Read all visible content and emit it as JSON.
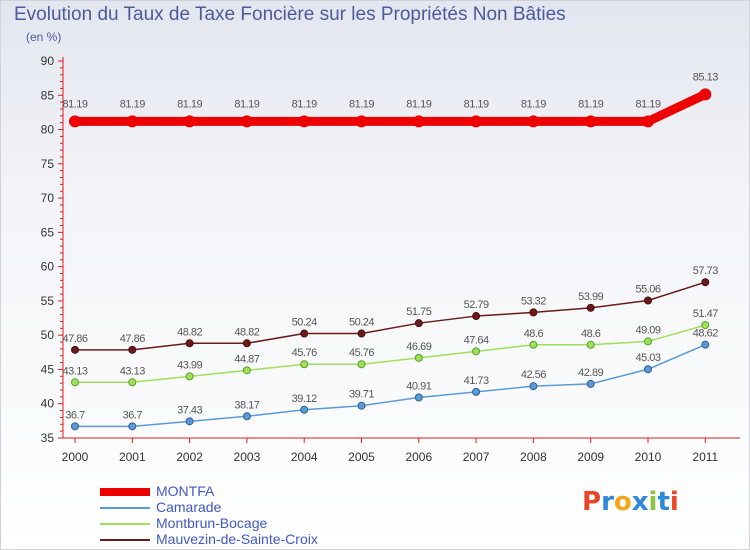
{
  "header": {
    "title": "Evolution du Taux de Taxe Foncière sur les Propriétés Non Bâties",
    "subtitle": "(en %)"
  },
  "logo": {
    "letters": [
      "P",
      "r",
      "o",
      "x",
      "i",
      "t",
      "i"
    ],
    "colors": [
      "#e8452a",
      "#2e8ad8",
      "#f4a61a",
      "#2e8ad8",
      "#8bc53f",
      "#2e8ad8",
      "#e8452a"
    ]
  },
  "chart_data": {
    "type": "line",
    "title": "Evolution du Taux de Taxe Foncière sur les Propriétés Non Bâties",
    "ylabel": "(en %)",
    "xlabel": "",
    "ylim": [
      35,
      90
    ],
    "yticks": [
      35,
      40,
      45,
      50,
      55,
      60,
      65,
      70,
      75,
      80,
      85,
      90
    ],
    "grid": false,
    "legend_position": "bottom-left",
    "categories": [
      "2000",
      "2001",
      "2002",
      "2003",
      "2004",
      "2005",
      "2006",
      "2007",
      "2008",
      "2009",
      "2010",
      "2011"
    ],
    "series": [
      {
        "name": "MONTFA",
        "color": "#ee0000",
        "values": [
          81.19,
          81.19,
          81.19,
          81.19,
          81.19,
          81.19,
          81.19,
          81.19,
          81.19,
          81.19,
          81.19,
          85.13
        ],
        "labels": [
          "81.19",
          "81.19",
          "81.19",
          "81.19",
          "81.19",
          "81.19",
          "81.19",
          "81.19",
          "81.19",
          "81.19",
          "81.19",
          "85.13"
        ]
      },
      {
        "name": "Camarade",
        "color": "#5b9bd5",
        "values": [
          36.7,
          36.7,
          37.43,
          38.17,
          39.12,
          39.71,
          40.91,
          41.73,
          42.56,
          42.89,
          45.03,
          48.62
        ],
        "labels": [
          "36.7",
          "36.7",
          "37.43",
          "38.17",
          "39.12",
          "39.71",
          "40.91",
          "41.73",
          "42.56",
          "42.89",
          "45.03",
          "48.62"
        ]
      },
      {
        "name": "Montbrun-Bocage",
        "color": "#9ee05a",
        "values": [
          43.13,
          43.13,
          43.99,
          44.87,
          45.76,
          45.76,
          46.69,
          47.64,
          48.6,
          48.6,
          49.09,
          51.47
        ],
        "labels": [
          "43.13",
          "43.13",
          "43.99",
          "44.87",
          "45.76",
          "45.76",
          "46.69",
          "47.64",
          "48.6",
          "48.6",
          "49.09",
          "51.47"
        ]
      },
      {
        "name": "Mauvezin-de-Sainte-Croix",
        "color": "#6b1a1a",
        "values": [
          47.86,
          47.86,
          48.82,
          48.82,
          50.24,
          50.24,
          51.75,
          52.79,
          53.32,
          53.99,
          55.06,
          57.73
        ],
        "labels": [
          "47.86",
          "47.86",
          "48.82",
          "48.82",
          "50.24",
          "50.24",
          "51.75",
          "52.79",
          "53.32",
          "53.99",
          "55.06",
          "57.73"
        ]
      }
    ]
  }
}
